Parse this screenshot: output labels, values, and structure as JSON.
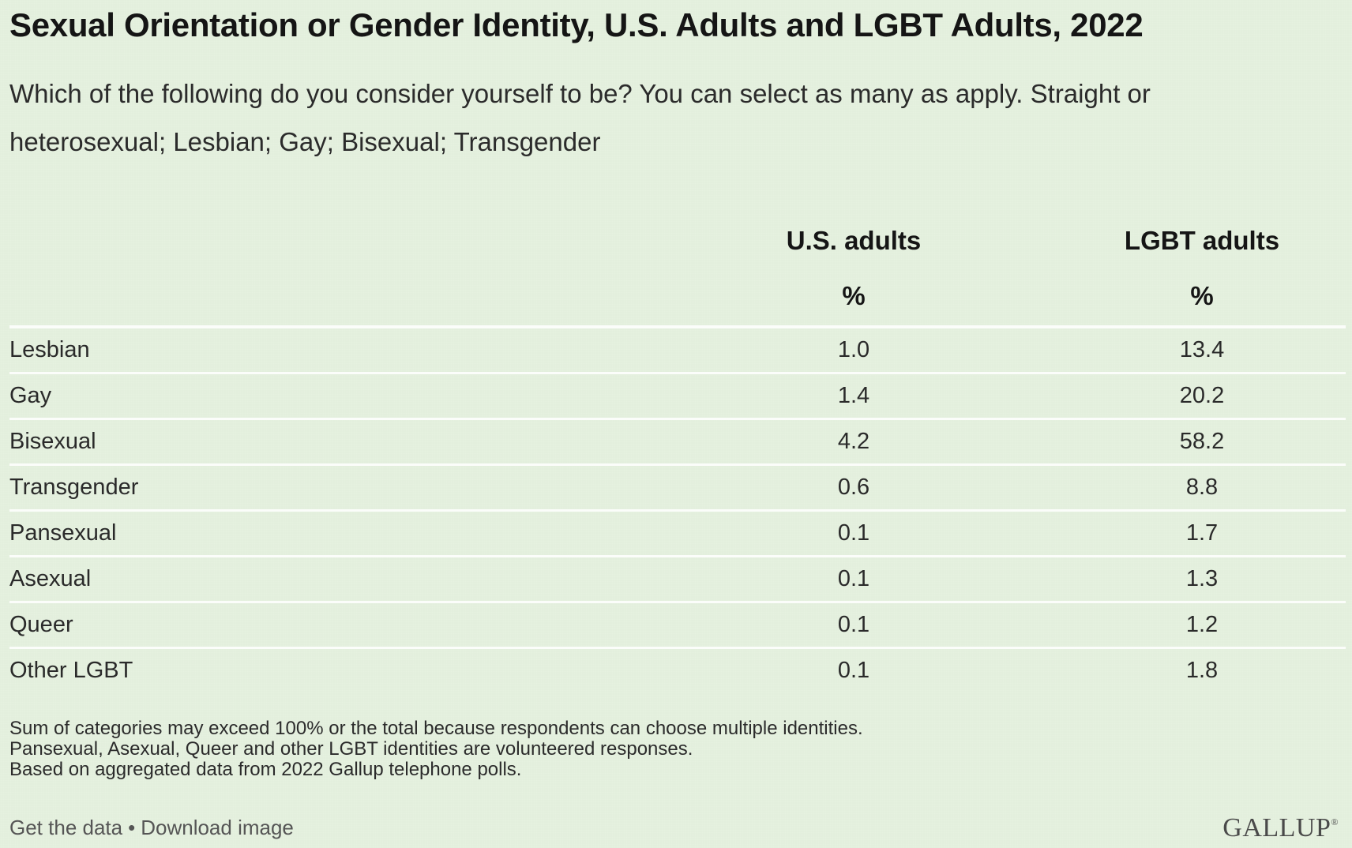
{
  "title": "Sexual Orientation or Gender Identity, U.S. Adults and LGBT Adults, 2022",
  "subtitle": "Which of the following do you consider yourself to be? You can select as many as apply. Straight or heterosexual; Lesbian; Gay; Bisexual; Transgender",
  "chart_data": {
    "type": "table",
    "columns": [
      "U.S. adults",
      "LGBT adults"
    ],
    "column_units": [
      "%",
      "%"
    ],
    "rows": [
      {
        "label": "Lesbian",
        "us": "1.0",
        "lgbt": "13.4"
      },
      {
        "label": "Gay",
        "us": "1.4",
        "lgbt": "20.2"
      },
      {
        "label": "Bisexual",
        "us": "4.2",
        "lgbt": "58.2"
      },
      {
        "label": "Transgender",
        "us": "0.6",
        "lgbt": "8.8"
      },
      {
        "label": "Pansexual",
        "us": "0.1",
        "lgbt": "1.7"
      },
      {
        "label": "Asexual",
        "us": "0.1",
        "lgbt": "1.3"
      },
      {
        "label": "Queer",
        "us": "0.1",
        "lgbt": "1.2"
      },
      {
        "label": "Other LGBT",
        "us": "0.1",
        "lgbt": "1.8"
      }
    ]
  },
  "notes": [
    "Sum of categories may exceed 100% or the total because respondents can choose multiple identities.",
    "Pansexual, Asexual, Queer and other LGBT identities are volunteered responses.",
    "Based on aggregated data from 2022 Gallup telephone polls."
  ],
  "footer": {
    "get_data": "Get the data",
    "separator": "•",
    "download": "Download image",
    "logo": "GALLUP",
    "logo_mark": "®"
  },
  "colors": {
    "background": "#e3efdd",
    "divider": "#fbfdfa",
    "text": "#1c1c1c"
  }
}
